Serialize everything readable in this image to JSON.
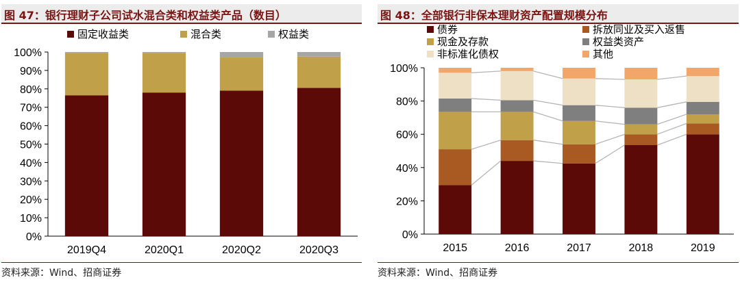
{
  "left": {
    "title": "图 47：银行理财子公司试水混合类和权益类产品（数目）",
    "source": "资料来源：Wind、招商证券",
    "chart_data": {
      "type": "bar",
      "stacked": true,
      "categories": [
        "2019Q4",
        "2020Q1",
        "2020Q2",
        "2020Q3"
      ],
      "series": [
        {
          "name": "固定收益类",
          "color": "#5c0a08",
          "values": [
            76.5,
            78,
            79,
            80.5
          ]
        },
        {
          "name": "混合类",
          "color": "#c0a048",
          "values": [
            23,
            21.5,
            18,
            17
          ]
        },
        {
          "name": "权益类",
          "color": "#a6a6a6",
          "values": [
            0.5,
            0.5,
            3,
            2.5
          ]
        }
      ],
      "ylim": [
        0,
        100
      ],
      "yticks": [
        "0%",
        "10%",
        "20%",
        "30%",
        "40%",
        "50%",
        "60%",
        "70%",
        "80%",
        "90%",
        "100%"
      ],
      "legend_position": "top"
    }
  },
  "right": {
    "title": "图 48：全部银行非保本理财资产配置规模分布",
    "source": "资料来源：Wind、招商证券",
    "chart_data": {
      "type": "bar",
      "stacked": true,
      "categories": [
        "2015",
        "2016",
        "2017",
        "2018",
        "2019"
      ],
      "series": [
        {
          "name": "债券",
          "color": "#5c0a08",
          "values": [
            29.5,
            44,
            42.5,
            53.5,
            60
          ]
        },
        {
          "name": "拆放同业及买入返售",
          "color": "#a85a22",
          "values": [
            21.5,
            12.5,
            11.5,
            6.5,
            6.5
          ]
        },
        {
          "name": "现金及存款",
          "color": "#c0a048",
          "values": [
            22.5,
            17,
            14,
            6,
            5.5
          ]
        },
        {
          "name": "权益类资产",
          "color": "#7f7f7f",
          "values": [
            8,
            7,
            9.5,
            10,
            7.5
          ]
        },
        {
          "name": "非标准化债权",
          "color": "#ede0c4",
          "values": [
            15.5,
            17.5,
            16,
            17,
            15.5
          ]
        },
        {
          "name": "其他",
          "color": "#f3a66a",
          "values": [
            3,
            2,
            6.5,
            7,
            5
          ]
        }
      ],
      "ylim": [
        0,
        100
      ],
      "yticks": [
        "0%",
        "20%",
        "40%",
        "60%",
        "80%",
        "100%"
      ],
      "legend_position": "top",
      "connector_lines": true
    }
  }
}
